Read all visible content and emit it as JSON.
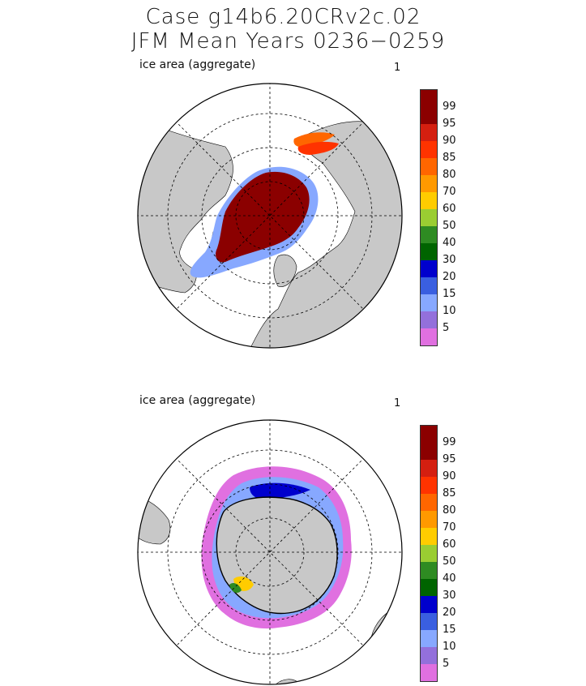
{
  "title": {
    "case": "Case g14b6.20CRv2c.02",
    "period": "JFM Mean    Years 0236−0259"
  },
  "panels": [
    {
      "label": "ice area  (aggregate)",
      "number": "1",
      "hemisphere": "north"
    },
    {
      "label": "ice area  (aggregate)",
      "number": "1",
      "hemisphere": "south"
    }
  ],
  "colorbar": {
    "levels": [
      "99",
      "95",
      "90",
      "85",
      "80",
      "70",
      "60",
      "50",
      "40",
      "30",
      "20",
      "15",
      "10",
      "5"
    ],
    "colors": [
      "#8b0000",
      "#d41f10",
      "#ff3300",
      "#ff6600",
      "#ff9900",
      "#ffcc00",
      "#9acd32",
      "#2e8b22",
      "#006400",
      "#0000cd",
      "#3a5fe0",
      "#87a8ff",
      "#9370db",
      "#e070e0"
    ],
    "top_color": "#8b0000"
  },
  "map_colors": {
    "land": "#c8c8c8",
    "ocean": "#ffffff",
    "grid": "#000000"
  }
}
